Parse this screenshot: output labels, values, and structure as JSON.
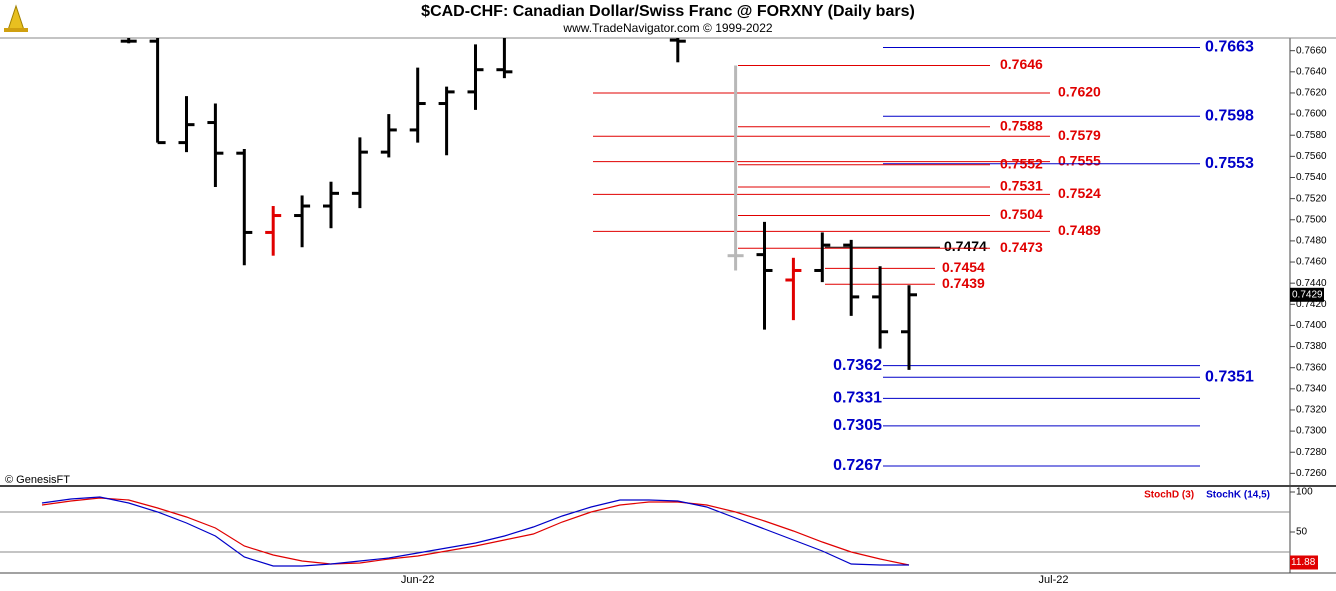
{
  "chart_data": [
    {
      "type": "ohlc",
      "title": "$CAD-CHF:  Canadian Dollar/Swiss Franc @ FORXNY  (Daily bars)",
      "subtitle": "www.TradeNavigator.com © 1999-2022",
      "annotation": "© GenesisFT",
      "categories": [
        null,
        null,
        null,
        null,
        null,
        null,
        null,
        null,
        null,
        null,
        null,
        null,
        null,
        "Jun-22",
        null,
        null,
        null,
        null,
        null,
        null,
        null,
        null,
        null,
        null,
        null,
        null,
        null,
        null,
        null,
        null,
        null,
        null,
        null,
        null,
        null,
        "Jul-22",
        null,
        null,
        null,
        null,
        null,
        null,
        null,
        null
      ],
      "open": [
        null,
        null,
        null,
        0.7669,
        0.7669,
        0.7573,
        0.7592,
        0.7563,
        0.7488,
        0.7504,
        0.7513,
        0.7525,
        0.7564,
        0.7585,
        0.761,
        0.7621,
        0.7642,
        null,
        null,
        null,
        null,
        null,
        0.767,
        null,
        0.7466,
        0.7467,
        0.7443,
        0.7452,
        0.7476,
        0.7427,
        0.7394,
        null,
        null,
        null,
        null,
        null,
        null,
        null,
        null,
        null,
        null,
        null,
        null,
        null
      ],
      "high": [
        null,
        null,
        null,
        0.7672,
        0.7672,
        0.7617,
        0.761,
        0.7567,
        0.7513,
        0.7523,
        0.7536,
        0.7578,
        0.76,
        0.7644,
        0.7626,
        0.7666,
        0.7672,
        null,
        null,
        null,
        null,
        null,
        0.7672,
        null,
        0.7646,
        0.7498,
        0.7464,
        0.7488,
        0.7481,
        0.7456,
        0.7438,
        null,
        null,
        null,
        null,
        null,
        null,
        null,
        null,
        null,
        null,
        null,
        null,
        null
      ],
      "low": [
        null,
        null,
        null,
        0.7667,
        0.7573,
        0.7564,
        0.7531,
        0.7457,
        0.7466,
        0.7474,
        0.7492,
        0.7511,
        0.7559,
        0.7573,
        0.7561,
        0.7604,
        0.7634,
        null,
        null,
        null,
        null,
        null,
        0.7649,
        null,
        0.7452,
        0.7396,
        0.7405,
        0.7441,
        0.7409,
        0.7378,
        0.7358,
        null,
        null,
        null,
        null,
        null,
        null,
        null,
        null,
        null,
        null,
        null,
        null,
        null
      ],
      "close": [
        null,
        null,
        null,
        0.7669,
        0.7573,
        0.759,
        0.7563,
        0.7488,
        0.7504,
        0.7513,
        0.7525,
        0.7564,
        0.7585,
        0.761,
        0.7621,
        0.7642,
        0.764,
        null,
        null,
        null,
        null,
        null,
        0.7669,
        null,
        0.7466,
        0.7452,
        0.7452,
        0.7476,
        0.7427,
        0.7394,
        0.7429,
        null,
        null,
        null,
        null,
        null,
        null,
        null,
        null,
        null,
        null,
        null,
        null,
        null
      ],
      "bar_colors": [
        null,
        null,
        null,
        "#000000",
        "#000000",
        "#000000",
        "#000000",
        "#000000",
        "#e00000",
        "#000000",
        "#000000",
        "#000000",
        "#000000",
        "#000000",
        "#000000",
        "#000000",
        "#000000",
        null,
        null,
        null,
        null,
        null,
        "#000000",
        null,
        "#b8b8b8",
        "#000000",
        "#e00000",
        "#000000",
        "#000000",
        "#000000",
        "#000000",
        null,
        null,
        null,
        null,
        null,
        null,
        null,
        null,
        null,
        null,
        null,
        null,
        null
      ],
      "ylim": [
        0.7249,
        0.7672
      ],
      "yticks": [
        {
          "value": 0.726,
          "label": "0.7260"
        },
        {
          "value": 0.728,
          "label": "0.7280"
        },
        {
          "value": 0.73,
          "label": "0.7300"
        },
        {
          "value": 0.732,
          "label": "0.7320"
        },
        {
          "value": 0.734,
          "label": "0.7340"
        },
        {
          "value": 0.736,
          "label": "0.7360"
        },
        {
          "value": 0.738,
          "label": "0.7380"
        },
        {
          "value": 0.74,
          "label": "0.7400"
        },
        {
          "value": 0.742,
          "label": "0.7420"
        },
        {
          "value": 0.744,
          "label": "0.7440"
        },
        {
          "value": 0.746,
          "label": "0.7460"
        },
        {
          "value": 0.748,
          "label": "0.7480"
        },
        {
          "value": 0.75,
          "label": "0.7500"
        },
        {
          "value": 0.752,
          "label": "0.7520"
        },
        {
          "value": 0.754,
          "label": "0.7540"
        },
        {
          "value": 0.756,
          "label": "0.7560"
        },
        {
          "value": 0.758,
          "label": "0.7580"
        },
        {
          "value": 0.76,
          "label": "0.7600"
        },
        {
          "value": 0.762,
          "label": "0.7620"
        },
        {
          "value": 0.764,
          "label": "0.7640"
        },
        {
          "value": 0.766,
          "label": "0.7660"
        }
      ],
      "last_price": 0.7429,
      "levels": {
        "values": [
          0.7663,
          0.7646,
          0.762,
          0.7598,
          0.7588,
          0.7579,
          0.7555,
          0.7553,
          0.7552,
          0.7531,
          0.7524,
          0.7504,
          0.7489,
          0.7474,
          0.7473,
          0.7454,
          0.7439,
          0.7362,
          0.7351,
          0.7331,
          0.7305,
          0.7267
        ],
        "value_labels": [
          "0.7663",
          "0.7646",
          "0.7620",
          "0.7598",
          "0.7588",
          "0.7579",
          "0.7555",
          "0.7553",
          "0.7552",
          "0.7531",
          "0.7524",
          "0.7504",
          "0.7489",
          "0.7474",
          "0.7473",
          "0.7454",
          "0.7439",
          "0.7362",
          "0.7351",
          "0.7331",
          "0.7305",
          "0.7267"
        ],
        "colors": [
          "#0000c8",
          "#e00000",
          "#e00000",
          "#0000c8",
          "#e00000",
          "#e00000",
          "#e00000",
          "#0000c8",
          "#e00000",
          "#e00000",
          "#e00000",
          "#e00000",
          "#e00000",
          "#000000",
          "#e00000",
          "#e00000",
          "#e00000",
          "#0000c8",
          "#0000c8",
          "#0000c8",
          "#0000c8",
          "#0000c8"
        ]
      }
    },
    {
      "type": "line",
      "series": [
        {
          "name": "StochD (3)",
          "color": "#e00000",
          "values": [
            83.8,
            88.8,
            92.5,
            90,
            80,
            68.8,
            55,
            32.5,
            21.3,
            13.8,
            10,
            11.3,
            16.3,
            20,
            26.3,
            32.5,
            40,
            47.5,
            62.5,
            75,
            83.8,
            87.5,
            87.5,
            83.8,
            75,
            63.8,
            51.3,
            37.5,
            25,
            16.3,
            8.8,
            null,
            null,
            null,
            null,
            null,
            null,
            null,
            null,
            null,
            null,
            null,
            null,
            null
          ]
        },
        {
          "name": "StochK (14,5)",
          "color": "#0000c8",
          "values": [
            86.3,
            91.3,
            93.8,
            86.3,
            75,
            61.3,
            45,
            18.8,
            7.5,
            7.5,
            10,
            13.8,
            17.5,
            23.8,
            30,
            36.3,
            45,
            56.3,
            70,
            81.3,
            90,
            90,
            88.8,
            81.3,
            67.5,
            53.8,
            40,
            26.3,
            10,
            8.8,
            8.8,
            null,
            null,
            null,
            null,
            null,
            null,
            null,
            null,
            null,
            null,
            null,
            null,
            null
          ]
        }
      ],
      "ylim": [
        -1.25,
        106.25
      ],
      "yticks": [
        50,
        100
      ],
      "levels": [
        25,
        75
      ],
      "last_value": 11.88
    }
  ]
}
